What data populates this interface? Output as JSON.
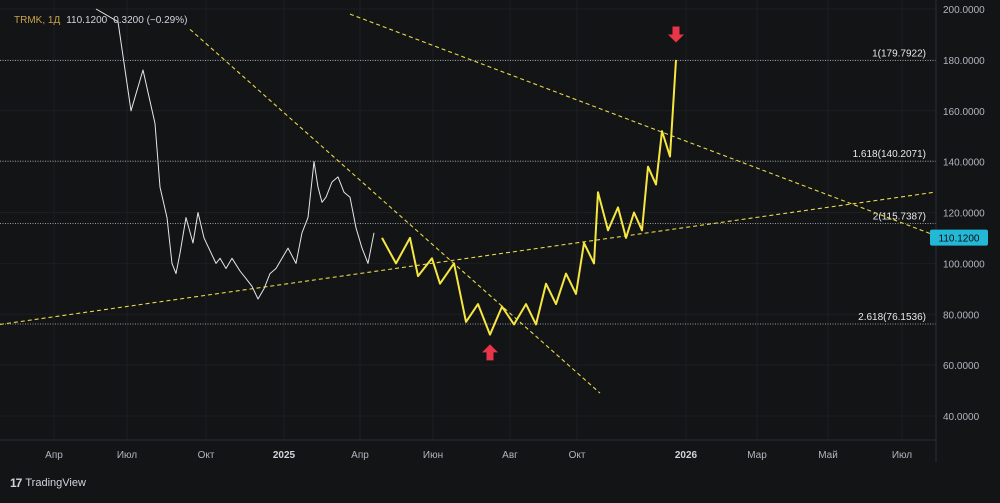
{
  "header": {
    "symbol": "TRMK, 1Д",
    "last": "110.1200",
    "change": "0.3200 (−0.29%)"
  },
  "brand": {
    "logo": "17",
    "name": "TradingView"
  },
  "colors": {
    "background": "#131416",
    "price_line": "#e6e6e6",
    "projection": "#f5e642",
    "trendline": "#e8d84a",
    "arrow": "#e8354a",
    "last_badge": "#22b8d6",
    "grid": "#1c1e22"
  },
  "chart_data": {
    "type": "line",
    "y_axis_labels": [
      "200.0000",
      "180.0000",
      "160.0000",
      "140.0000",
      "120.0000",
      "100.0000",
      "80.0000",
      "60.0000",
      "40.0000"
    ],
    "ylim": [
      35,
      200
    ],
    "x_axis_labels": [
      "Апр",
      "Июл",
      "Окт",
      "2025",
      "Апр",
      "Июн",
      "Авг",
      "Окт",
      "2026",
      "Мар",
      "Май",
      "Июл"
    ],
    "last_price_label": "110.1200",
    "levels": [
      {
        "label": "1(179.7922)",
        "value": 179.7922
      },
      {
        "label": "1.618(140.2071)",
        "value": 140.2071
      },
      {
        "label": "2(115.7387)",
        "value": 115.7387
      },
      {
        "label": "2.618(76.1536)",
        "value": 76.1536
      }
    ],
    "series": [
      {
        "kind": "historical",
        "x": [
          0.096,
          0.118,
          0.131,
          0.143,
          0.155,
          0.16,
          0.167,
          0.172,
          0.176,
          0.18,
          0.186,
          0.193,
          0.198,
          0.204,
          0.21,
          0.216,
          0.22,
          0.226,
          0.232,
          0.24,
          0.246,
          0.252,
          0.258,
          0.264,
          0.27,
          0.276,
          0.282,
          0.288,
          0.296,
          0.302,
          0.308,
          0.314,
          0.318,
          0.322,
          0.326,
          0.332,
          0.338,
          0.344,
          0.35,
          0.356,
          0.362,
          0.368,
          0.374
        ],
        "values": [
          200,
          195,
          160,
          176,
          155,
          130,
          118,
          100,
          96,
          104,
          118,
          108,
          120,
          110,
          105,
          100,
          102,
          98,
          102,
          97,
          94,
          91,
          86,
          90,
          96,
          98,
          102,
          106,
          100,
          112,
          118,
          140,
          130,
          124,
          126,
          132,
          134,
          128,
          126,
          114,
          106,
          100,
          112
        ]
      },
      {
        "kind": "projection",
        "x": [
          0.382,
          0.396,
          0.41,
          0.418,
          0.432,
          0.44,
          0.454,
          0.466,
          0.478,
          0.49,
          0.502,
          0.514,
          0.526,
          0.536,
          0.546,
          0.556,
          0.566,
          0.576,
          0.584,
          0.594,
          0.598,
          0.608,
          0.618,
          0.626,
          0.634,
          0.642,
          0.648,
          0.656,
          0.662,
          0.67,
          0.676
        ],
        "values": [
          110,
          100,
          110,
          95,
          102,
          92,
          100,
          77,
          84,
          72,
          83,
          76,
          84,
          76,
          92,
          84,
          96,
          88,
          108,
          100,
          128,
          113,
          122,
          110,
          120,
          113,
          138,
          131,
          152,
          142,
          180
        ]
      }
    ],
    "trendlines": [
      {
        "x": [
          0.35,
          0.935
        ],
        "values": [
          198,
          111
        ]
      },
      {
        "x": [
          0.19,
          0.6
        ],
        "values": [
          192,
          49
        ]
      },
      {
        "x": [
          0.0,
          0.935
        ],
        "values": [
          76,
          128
        ]
      }
    ],
    "annotations": [
      {
        "type": "arrow-up",
        "x": 0.49,
        "value": 65
      },
      {
        "type": "arrow-down",
        "x": 0.676,
        "value": 190
      }
    ]
  }
}
